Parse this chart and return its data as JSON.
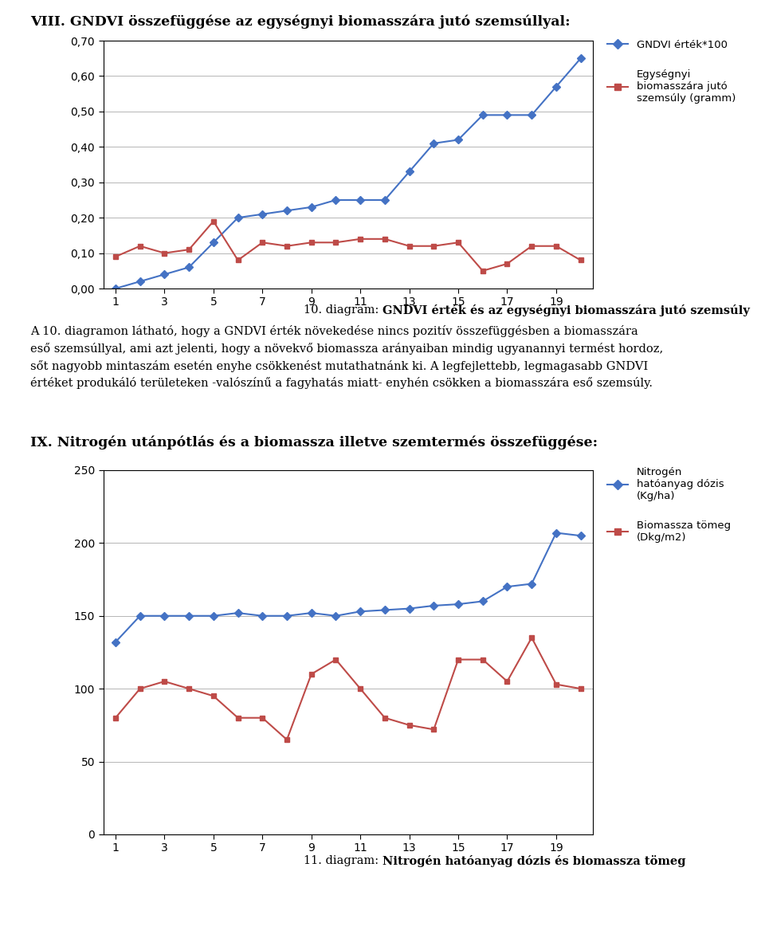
{
  "title1": "VIII. GNDVI összefüggése az egyégnyi biomasszzára jutó szemsúlyal:",
  "title2": "IX. Nitrogén utánpótlás és a biomassza illetve szemtermés összefüggése:",
  "caption1_prefix": "10. diagram: ",
  "caption1_bold": "GNDVI érték és az egyégnyi biomasszzára jutó szemsúly",
  "caption2_prefix": "11. diagram: ",
  "caption2_bold": "Nitrogén hatóanyag dózis és biomassza tömeg",
  "body_line1": "A 10. diagramon látható, hogy a GNDVI érték növekedése nincs pozitív összefüggésben a biomasszzára",
  "body_line2": "eső szemsúlylyal, ami azt jelenti, hogy a növekvő biomassza arányaiban mindig ugyanannyi termést hordoz,",
  "body_line3": "sőt nagyobb mintaszám esetén enyhe csökkenést mutathatnánk ki. A legfejlettebb, legmagasabb GNDVI",
  "body_line4": "értéket produkáló területeken -valószïnű a fagyhatzás miatt- enhyén csökken a biomasszzára eső szemsúly.",
  "chart1_x": [
    1,
    2,
    3,
    4,
    5,
    6,
    7,
    8,
    9,
    10,
    11,
    12,
    13,
    14,
    15,
    16,
    17,
    18,
    19,
    20
  ],
  "chart1_gndvi": [
    0.0,
    0.02,
    0.04,
    0.06,
    0.13,
    0.2,
    0.21,
    0.22,
    0.23,
    0.25,
    0.25,
    0.25,
    0.33,
    0.41,
    0.42,
    0.49,
    0.49,
    0.49,
    0.57,
    0.65
  ],
  "chart1_red": [
    0.09,
    0.12,
    0.1,
    0.11,
    0.19,
    0.08,
    0.13,
    0.12,
    0.13,
    0.13,
    0.14,
    0.14,
    0.12,
    0.12,
    0.13,
    0.05,
    0.07,
    0.12,
    0.12,
    0.08
  ],
  "chart2_x": [
    1,
    2,
    3,
    4,
    5,
    6,
    7,
    8,
    9,
    10,
    11,
    12,
    13,
    14,
    15,
    16,
    17,
    18,
    19,
    20
  ],
  "chart2_blue": [
    132,
    150,
    150,
    150,
    150,
    152,
    150,
    150,
    152,
    150,
    153,
    154,
    155,
    157,
    158,
    160,
    170,
    172,
    207,
    205
  ],
  "chart2_red": [
    80,
    100,
    105,
    100,
    95,
    80,
    80,
    65,
    110,
    120,
    100,
    80,
    75,
    72,
    120,
    120,
    105,
    135,
    103,
    100
  ],
  "blue_color": "#4472C4",
  "red_color": "#BE4B48",
  "legend1_blue": "GNDVI érték*100",
  "legend1_red": "Egyégnyi\nbiomasszzára jutó\nszemsúly (gramm)",
  "legend2_blue": "Nitrogén\nhatóanyag dózis\n(Kg/ha)",
  "legend2_red": "Biomassza tömeg\n(Dkg/m2)",
  "chart1_ylim": [
    0.0,
    0.7
  ],
  "chart1_yticks": [
    0.0,
    0.1,
    0.2,
    0.3,
    0.4,
    0.5,
    0.6,
    0.7
  ],
  "chart2_ylim": [
    0,
    250
  ],
  "chart2_yticks": [
    0,
    50,
    100,
    150,
    200,
    250
  ],
  "xticks": [
    1,
    3,
    5,
    7,
    9,
    11,
    13,
    15,
    17,
    19
  ]
}
